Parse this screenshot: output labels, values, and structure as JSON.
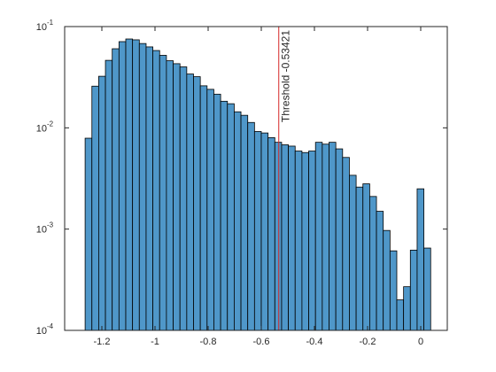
{
  "chart_data": {
    "type": "histogram",
    "bins": [
      -1.263,
      -1.2375,
      -1.212,
      -1.1865,
      -1.161,
      -1.1355,
      -1.11,
      -1.0845,
      -1.059,
      -1.0335,
      -1.008,
      -0.9825,
      -0.957,
      -0.9315,
      -0.906,
      -0.8805,
      -0.855,
      -0.8295,
      -0.804,
      -0.7785,
      -0.753,
      -0.7275,
      -0.702,
      -0.6765,
      -0.651,
      -0.6255,
      -0.6,
      -0.5745,
      -0.549,
      -0.5235,
      -0.498,
      -0.4725,
      -0.447,
      -0.4215,
      -0.396,
      -0.3705,
      -0.345,
      -0.3195,
      -0.294,
      -0.2685,
      -0.243,
      -0.2175,
      -0.192,
      -0.1665,
      -0.141,
      -0.1155,
      -0.09,
      -0.0645,
      -0.039,
      -0.0135,
      0.012,
      0.0375
    ],
    "values": [
      0.0079,
      0.0258,
      0.0323,
      0.0464,
      0.0604,
      0.071,
      0.0754,
      0.074,
      0.068,
      0.063,
      0.058,
      0.052,
      0.046,
      0.043,
      0.04,
      0.034,
      0.032,
      0.026,
      0.024,
      0.0215,
      0.0183,
      0.0173,
      0.0144,
      0.0133,
      0.0113,
      0.0092,
      0.0089,
      0.008,
      0.0072,
      0.0068,
      0.0066,
      0.0059,
      0.0057,
      0.0059,
      0.0072,
      0.0069,
      0.0072,
      0.0062,
      0.0051,
      0.0034,
      0.0026,
      0.0028,
      0.0021,
      0.0015,
      0.00097,
      0.00061,
      0.0002,
      0.00027,
      0.00062,
      0.0025,
      0.00065
    ],
    "color": "#4f97c9",
    "xlim": [
      -1.34,
      0.1
    ],
    "xticks": [
      -1.2,
      -1,
      -0.8,
      -0.6,
      -0.4,
      -0.2,
      0
    ],
    "ylim": [
      0.0001,
      0.1
    ],
    "log_y": true,
    "yticks": [
      {
        "value": 0.0001,
        "label": "10",
        "exponent": "-4"
      },
      {
        "value": 0.001,
        "label": "10",
        "exponent": "-3"
      },
      {
        "value": 0.01,
        "label": "10",
        "exponent": "-2"
      },
      {
        "value": 0.1,
        "label": "10",
        "exponent": "-1"
      }
    ],
    "threshold": {
      "value": -0.53421,
      "label": "Threshold -0.53421",
      "color": "#d62728"
    }
  }
}
